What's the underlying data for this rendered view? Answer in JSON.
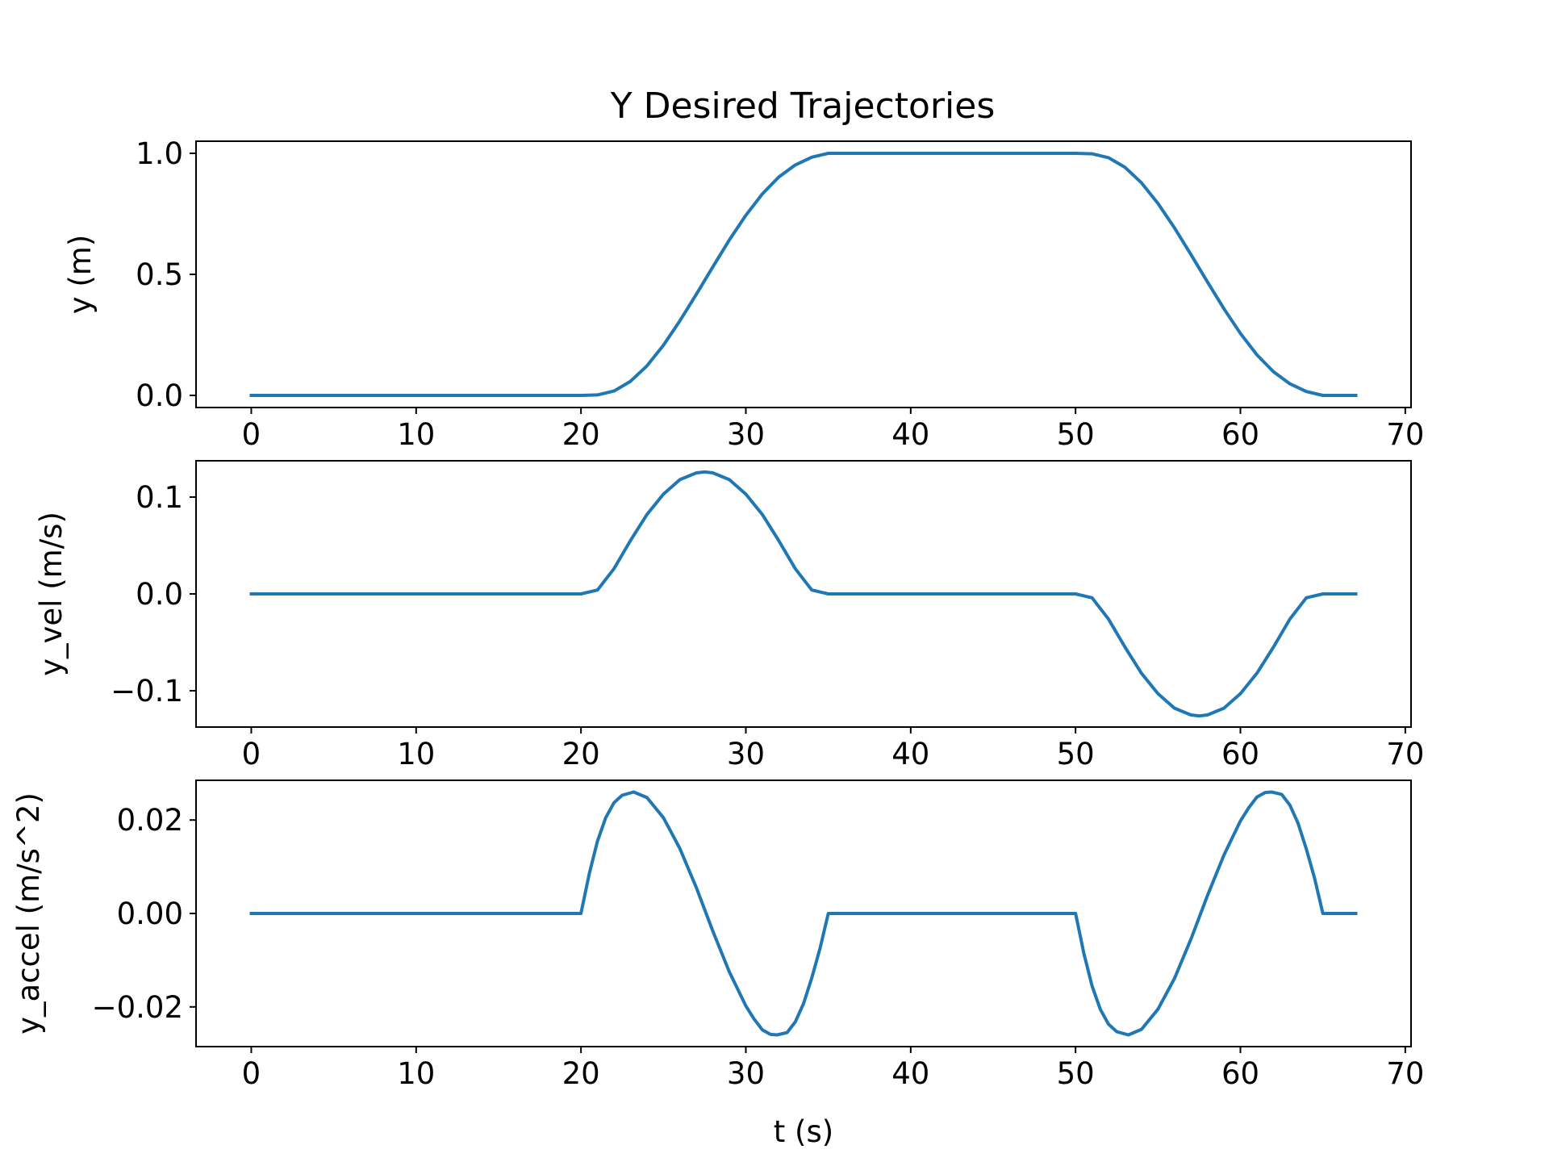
{
  "figure": {
    "title": "Y Desired Trajectories",
    "line_color": "#1f77b4"
  },
  "chart_data": [
    {
      "type": "line",
      "title": "Y Desired Trajectories",
      "xlabel": "",
      "ylabel": "y (m)",
      "xlim": [
        -3.35,
        70.35
      ],
      "ylim": [
        -0.05,
        1.05
      ],
      "xticks": [
        0,
        10,
        20,
        30,
        40,
        50,
        60,
        70
      ],
      "xtick_labels": [
        "0",
        "10",
        "20",
        "30",
        "40",
        "50",
        "60",
        "70"
      ],
      "yticks": [
        0.0,
        0.5,
        1.0
      ],
      "ytick_labels": [
        "0.0",
        "0.5",
        "1.0"
      ],
      "grid": false,
      "series": [
        {
          "color": "#1f77b4",
          "x": [
            0,
            5,
            10,
            15,
            20,
            21,
            22,
            23,
            24,
            25,
            26,
            27,
            28,
            29,
            30,
            31,
            32,
            33,
            34,
            35,
            40,
            45,
            50,
            51,
            52,
            53,
            54,
            55,
            56,
            57,
            58,
            59,
            60,
            61,
            62,
            63,
            64,
            65,
            67
          ],
          "y": [
            0,
            0,
            0,
            0,
            0,
            0.002,
            0.018,
            0.058,
            0.122,
            0.207,
            0.308,
            0.418,
            0.531,
            0.642,
            0.744,
            0.832,
            0.902,
            0.952,
            0.984,
            1.0,
            1.0,
            1.0,
            1.0,
            0.998,
            0.982,
            0.942,
            0.878,
            0.793,
            0.692,
            0.582,
            0.469,
            0.358,
            0.256,
            0.168,
            0.098,
            0.048,
            0.016,
            0.0,
            0.0
          ]
        }
      ]
    },
    {
      "type": "line",
      "xlabel": "",
      "ylabel": "y_vel (m/s)",
      "xlim": [
        -3.35,
        70.35
      ],
      "ylim": [
        -0.1375,
        0.1375
      ],
      "xticks": [
        0,
        10,
        20,
        30,
        40,
        50,
        60,
        70
      ],
      "xtick_labels": [
        "0",
        "10",
        "20",
        "30",
        "40",
        "50",
        "60",
        "70"
      ],
      "yticks": [
        -0.1,
        0.0,
        0.1
      ],
      "ytick_labels": [
        "−0.1",
        "0.0",
        "0.1"
      ],
      "grid": false,
      "series": [
        {
          "color": "#1f77b4",
          "x": [
            0,
            5,
            10,
            15,
            20,
            21,
            22,
            23,
            24,
            25,
            26,
            27,
            27.5,
            28,
            29,
            30,
            31,
            32,
            33,
            34,
            35,
            40,
            45,
            50,
            51,
            52,
            53,
            54,
            55,
            56,
            57,
            57.5,
            58,
            59,
            60,
            61,
            62,
            63,
            64,
            65,
            67
          ],
          "y": [
            0,
            0,
            0,
            0,
            0,
            0.004,
            0.026,
            0.055,
            0.082,
            0.103,
            0.118,
            0.125,
            0.126,
            0.125,
            0.118,
            0.103,
            0.082,
            0.055,
            0.026,
            0.004,
            0,
            0,
            0,
            0,
            -0.004,
            -0.026,
            -0.055,
            -0.082,
            -0.103,
            -0.118,
            -0.125,
            -0.126,
            -0.125,
            -0.118,
            -0.103,
            -0.082,
            -0.055,
            -0.026,
            -0.004,
            0,
            0
          ]
        }
      ]
    },
    {
      "type": "line",
      "xlabel": "t (s)",
      "ylabel": "y_accel (m/s^2)",
      "xlim": [
        -3.35,
        70.35
      ],
      "ylim": [
        -0.0285,
        0.0285
      ],
      "xticks": [
        0,
        10,
        20,
        30,
        40,
        50,
        60,
        70
      ],
      "xtick_labels": [
        "0",
        "10",
        "20",
        "30",
        "40",
        "50",
        "60",
        "70"
      ],
      "yticks": [
        -0.02,
        0.0,
        0.02
      ],
      "ytick_labels": [
        "−0.02",
        "0.00",
        "0.02"
      ],
      "grid": false,
      "series": [
        {
          "color": "#1f77b4",
          "x": [
            0,
            5,
            10,
            15,
            20,
            20.5,
            21,
            21.5,
            22,
            22.5,
            23.2,
            24,
            25,
            26,
            27,
            28,
            29,
            30,
            30.5,
            31,
            31.5,
            31.9,
            32.5,
            33,
            33.5,
            34,
            34.5,
            35,
            40,
            45,
            50,
            50.5,
            51,
            51.5,
            52,
            52.5,
            53.2,
            54,
            55,
            56,
            57,
            58,
            59,
            60,
            60.5,
            61,
            61.5,
            61.9,
            62.5,
            63,
            63.5,
            64,
            64.5,
            65,
            67
          ],
          "y": [
            0,
            0,
            0,
            0,
            0,
            0.0085,
            0.0155,
            0.0205,
            0.0237,
            0.0253,
            0.026,
            0.0248,
            0.0205,
            0.0139,
            0.0055,
            -0.0038,
            -0.0125,
            -0.0198,
            -0.0226,
            -0.0249,
            -0.0259,
            -0.026,
            -0.0255,
            -0.0232,
            -0.0193,
            -0.0138,
            -0.0075,
            0,
            0,
            0,
            0,
            -0.0085,
            -0.0155,
            -0.0205,
            -0.0237,
            -0.0253,
            -0.026,
            -0.0248,
            -0.0205,
            -0.0139,
            -0.0055,
            0.0038,
            0.0125,
            0.0198,
            0.0226,
            0.0249,
            0.0259,
            0.026,
            0.0255,
            0.0232,
            0.0193,
            0.0138,
            0.0075,
            0,
            0
          ]
        }
      ]
    }
  ]
}
